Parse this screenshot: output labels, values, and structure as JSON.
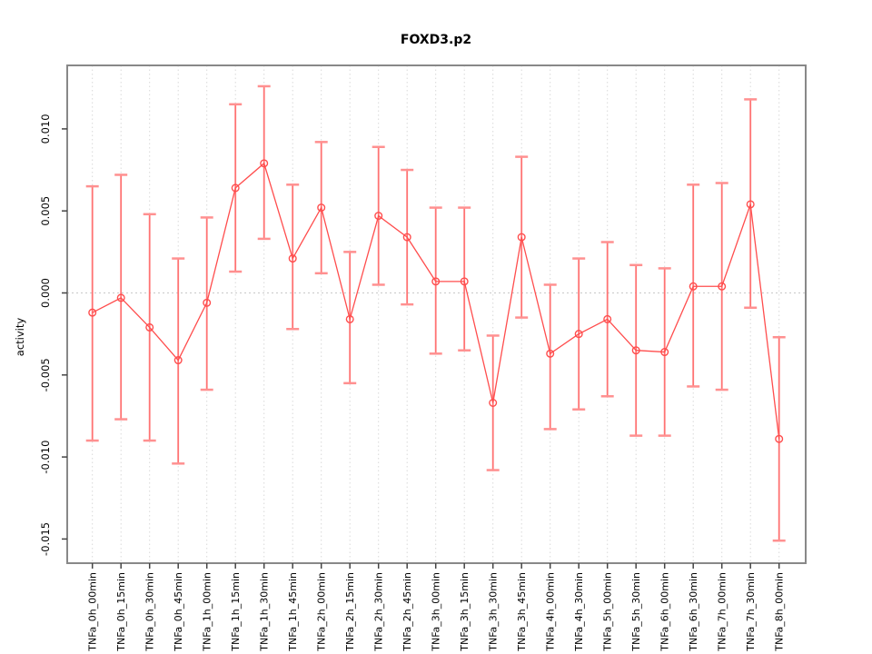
{
  "title": "FOXD3.p2",
  "ylabel": "activity",
  "colors": {
    "line": "#ff4d4d",
    "point_stroke": "#ff4d4d",
    "error_bar": "#ff7373",
    "error_cap": "#ff9090",
    "grid": "#d9d9d9",
    "zero_line": "#c8c8c8",
    "box": "#888888",
    "tick": "#444444",
    "text": "#000000"
  },
  "chart_data": {
    "type": "line",
    "title": "FOXD3.p2",
    "xlabel": "",
    "ylabel": "activity",
    "legend": "none",
    "grid": "vertical dotted gridline at every category; dotted horizontal line at y=0 only",
    "point_style": "open circles with vertical error bars and caps",
    "ylim": [
      -0.0165,
      0.014
    ],
    "yticks": [
      -0.015,
      -0.01,
      -0.005,
      0,
      0.005,
      0.01
    ],
    "ytick_labels": [
      "-0.015",
      "-0.010",
      "-0.005",
      "0.000",
      "0.005",
      "0.010"
    ],
    "categories": [
      "TNFa_0h_00min",
      "TNFa_0h_15min",
      "TNFa_0h_30min",
      "TNFa_0h_45min",
      "TNFa_1h_00min",
      "TNFa_1h_15min",
      "TNFa_1h_30min",
      "TNFa_1h_45min",
      "TNFa_2h_00min",
      "TNFa_2h_15min",
      "TNFa_2h_30min",
      "TNFa_2h_45min",
      "TNFa_3h_00min",
      "TNFa_3h_15min",
      "TNFa_3h_30min",
      "TNFa_3h_45min",
      "TNFa_4h_00min",
      "TNFa_4h_30min",
      "TNFa_5h_00min",
      "TNFa_5h_30min",
      "TNFa_6h_00min",
      "TNFa_6h_30min",
      "TNFa_7h_00min",
      "TNFa_7h_30min",
      "TNFa_8h_00min"
    ],
    "series": [
      {
        "name": "activity",
        "values": [
          -0.0012,
          -0.0003,
          -0.0021,
          -0.0041,
          -0.0006,
          0.0064,
          0.0079,
          0.0021,
          0.0052,
          -0.0016,
          0.0047,
          0.0034,
          0.0007,
          0.0007,
          -0.0067,
          0.0034,
          -0.0037,
          -0.0025,
          -0.0016,
          -0.0035,
          -0.0036,
          0.0004,
          0.0004,
          0.0054,
          -0.0089
        ],
        "ci_high": [
          0.0065,
          0.0072,
          0.0048,
          0.0021,
          0.0046,
          0.0115,
          0.0126,
          0.0066,
          0.0092,
          0.0025,
          0.0089,
          0.0075,
          0.0052,
          0.0052,
          -0.0026,
          0.0083,
          0.0005,
          0.0021,
          0.0031,
          0.0017,
          0.0015,
          0.0066,
          0.0067,
          0.0118,
          -0.0027
        ],
        "ci_low": [
          -0.009,
          -0.0077,
          -0.009,
          -0.0104,
          -0.0059,
          0.0013,
          0.0033,
          -0.0022,
          0.0012,
          -0.0055,
          0.0005,
          -0.0007,
          -0.0037,
          -0.0035,
          -0.0108,
          -0.0015,
          -0.0083,
          -0.0071,
          -0.0063,
          -0.0087,
          -0.0087,
          -0.0057,
          -0.0059,
          -0.0009,
          -0.0151
        ]
      }
    ]
  },
  "layout_note": "single R-style scatter/line plot with error bars"
}
